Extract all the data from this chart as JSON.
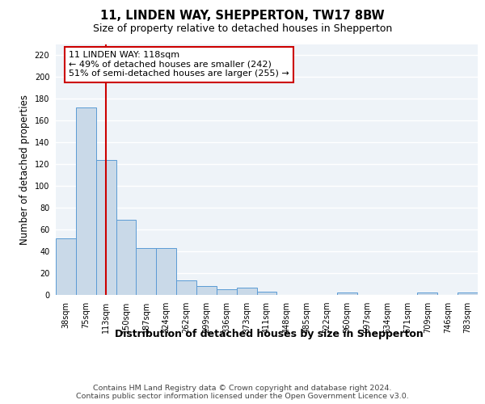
{
  "title_line1": "11, LINDEN WAY, SHEPPERTON, TW17 8BW",
  "title_line2": "Size of property relative to detached houses in Shepperton",
  "xlabel": "Distribution of detached houses by size in Shepperton",
  "ylabel": "Number of detached properties",
  "footer_line1": "Contains HM Land Registry data © Crown copyright and database right 2024.",
  "footer_line2": "Contains public sector information licensed under the Open Government Licence v3.0.",
  "annotation_line1": "11 LINDEN WAY: 118sqm",
  "annotation_line2": "← 49% of detached houses are smaller (242)",
  "annotation_line3": "51% of semi-detached houses are larger (255) →",
  "bar_labels": [
    "38sqm",
    "75sqm",
    "113sqm",
    "150sqm",
    "187sqm",
    "224sqm",
    "262sqm",
    "299sqm",
    "336sqm",
    "373sqm",
    "411sqm",
    "448sqm",
    "485sqm",
    "522sqm",
    "560sqm",
    "597sqm",
    "634sqm",
    "671sqm",
    "709sqm",
    "746sqm",
    "783sqm"
  ],
  "bar_values": [
    52,
    172,
    124,
    69,
    43,
    43,
    13,
    8,
    5,
    7,
    3,
    0,
    0,
    0,
    2,
    0,
    0,
    0,
    2,
    0,
    2
  ],
  "bar_color": "#c9d9e8",
  "bar_edge_color": "#5b9bd5",
  "vline_x_index": 2,
  "vline_color": "#cc0000",
  "annotation_box_edge_color": "#cc0000",
  "ylim": [
    0,
    230
  ],
  "yticks": [
    0,
    20,
    40,
    60,
    80,
    100,
    120,
    140,
    160,
    180,
    200,
    220
  ],
  "background_color": "#eef3f8",
  "grid_color": "#ffffff",
  "title_fontsize": 10.5,
  "subtitle_fontsize": 9,
  "axis_label_fontsize": 8.5,
  "tick_fontsize": 7,
  "footer_fontsize": 6.8,
  "annotation_fontsize": 8
}
